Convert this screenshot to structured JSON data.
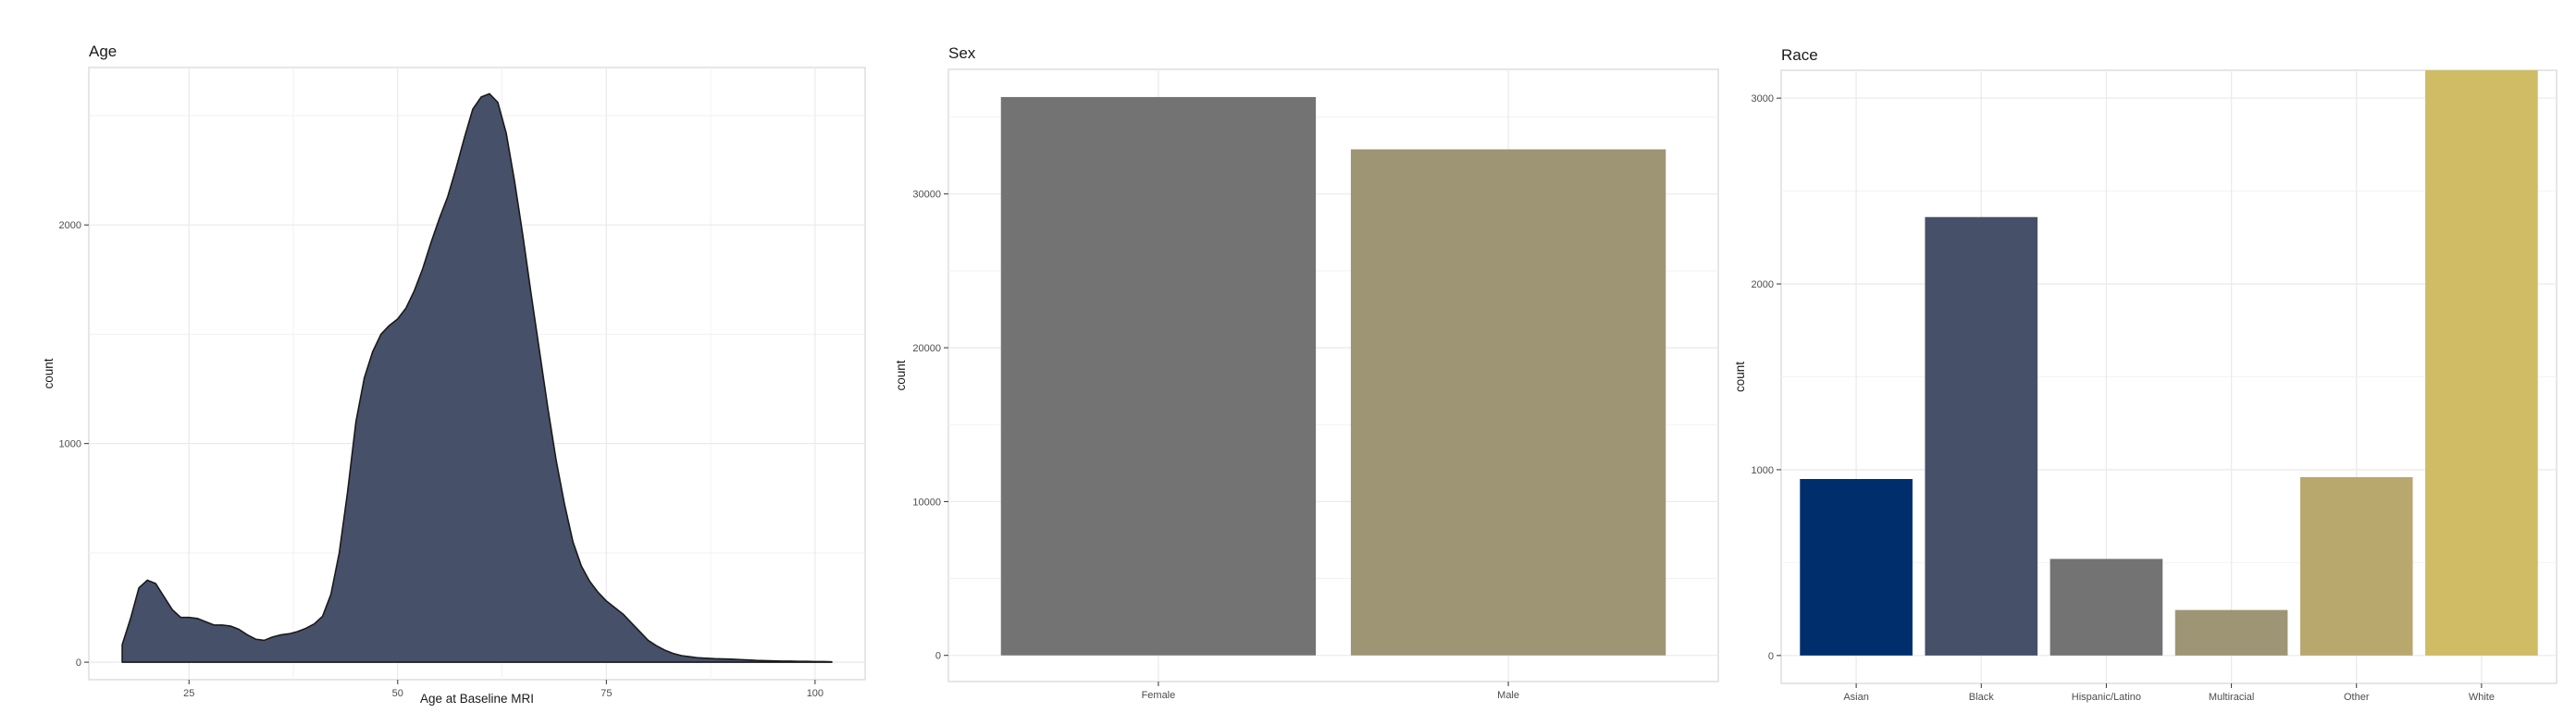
{
  "chart_data": [
    {
      "type": "area",
      "title": "Age",
      "xlabel": "Age at Baseline MRI",
      "ylabel": "count",
      "xlim": [
        13,
        106
      ],
      "ylim": [
        -80,
        2720
      ],
      "xticks": [
        25,
        50,
        75,
        100
      ],
      "yticks": [
        0,
        1000,
        2000
      ],
      "grid": true,
      "fill": "#475069",
      "x": [
        17,
        18,
        19,
        20,
        21,
        22,
        23,
        24,
        25,
        26,
        27,
        28,
        29,
        30,
        31,
        32,
        33,
        34,
        35,
        36,
        37,
        38,
        39,
        40,
        41,
        42,
        43,
        44,
        45,
        46,
        47,
        48,
        49,
        50,
        51,
        52,
        53,
        54,
        55,
        56,
        57,
        58,
        59,
        60,
        61,
        62,
        63,
        64,
        65,
        66,
        67,
        68,
        69,
        70,
        71,
        72,
        73,
        74,
        75,
        76,
        77,
        78,
        79,
        80,
        81,
        82,
        83,
        84,
        85,
        86,
        87,
        88,
        89,
        90,
        91,
        92,
        93,
        94,
        95,
        96,
        97,
        98,
        99,
        100,
        101,
        102
      ],
      "y": [
        80,
        200,
        340,
        375,
        360,
        300,
        240,
        205,
        205,
        200,
        185,
        170,
        170,
        165,
        150,
        125,
        105,
        100,
        115,
        125,
        130,
        140,
        155,
        175,
        210,
        310,
        500,
        780,
        1100,
        1300,
        1420,
        1500,
        1540,
        1570,
        1620,
        1700,
        1800,
        1920,
        2030,
        2130,
        2260,
        2400,
        2530,
        2585,
        2600,
        2560,
        2420,
        2200,
        1950,
        1680,
        1420,
        1160,
        920,
        720,
        550,
        440,
        370,
        320,
        280,
        250,
        220,
        180,
        140,
        100,
        75,
        55,
        40,
        30,
        25,
        20,
        18,
        16,
        15,
        14,
        12,
        10,
        8,
        7,
        6,
        5,
        5,
        4,
        4,
        3,
        3,
        2
      ]
    },
    {
      "type": "bar",
      "title": "Sex",
      "xlabel": "",
      "ylabel": "count",
      "categories": [
        "Female",
        "Male"
      ],
      "values": [
        36300,
        32900
      ],
      "colors": [
        "#737373",
        "#9e9574"
      ],
      "ylim": [
        -1700,
        38100
      ],
      "yticks": [
        0,
        10000,
        20000,
        30000
      ],
      "grid": true
    },
    {
      "type": "bar",
      "title": "Race",
      "xlabel": "",
      "ylabel": "count",
      "categories": [
        "Asian",
        "Black",
        "Hispanic/Latino",
        "Multiracial",
        "Other",
        "White"
      ],
      "values": [
        950,
        2360,
        520,
        245,
        960,
        3150
      ],
      "colors": [
        "#002e6d",
        "#475069",
        "#737373",
        "#9e9574",
        "#b8a86e",
        "#cfbc64"
      ],
      "ylim": [
        -150,
        3150
      ],
      "yticks": [
        0,
        1000,
        2000,
        3000
      ],
      "grid": true
    }
  ]
}
